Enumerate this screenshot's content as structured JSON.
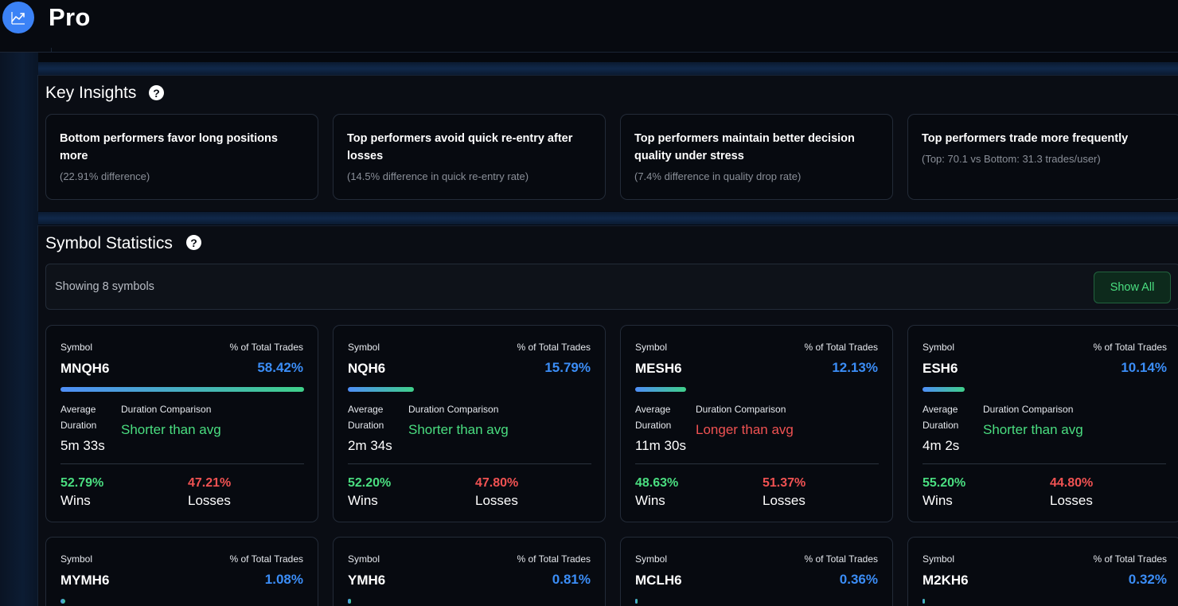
{
  "header": {
    "title": "Pro",
    "logo_icon": "chart-line-icon"
  },
  "insights_section": {
    "title": "Key Insights",
    "items": [
      {
        "title": "Bottom performers favor long positions more",
        "detail": "(22.91% difference)"
      },
      {
        "title": "Top performers avoid quick re-entry after losses",
        "detail": "(14.5% difference in quick re-entry rate)"
      },
      {
        "title": "Top performers maintain better decision quality under stress",
        "detail": "(7.4% difference in quality drop rate)"
      },
      {
        "title": "Top performers trade more frequently",
        "detail": "(Top: 70.1 vs Bottom: 31.3 trades/user)"
      }
    ]
  },
  "symbol_section": {
    "title": "Symbol Statistics",
    "showing_text": "Showing 8 symbols",
    "show_all_label": "Show All",
    "labels": {
      "symbol": "Symbol",
      "pct_total": "% of Total Trades",
      "avg_duration_line1": "Average",
      "avg_duration_line2": "Duration",
      "duration_comparison": "Duration Comparison",
      "wins": "Wins",
      "losses": "Losses"
    },
    "cards": [
      {
        "symbol": "MNQH6",
        "pct": "58.42%",
        "pct_value": 58.42,
        "avg_duration": "5m 33s",
        "comparison": "Shorter than avg",
        "comparison_kind": "shorter",
        "wins": "52.79%",
        "losses": "47.21%"
      },
      {
        "symbol": "NQH6",
        "pct": "15.79%",
        "pct_value": 15.79,
        "avg_duration": "2m 34s",
        "comparison": "Shorter than avg",
        "comparison_kind": "shorter",
        "wins": "52.20%",
        "losses": "47.80%"
      },
      {
        "symbol": "MESH6",
        "pct": "12.13%",
        "pct_value": 12.13,
        "avg_duration": "11m 30s",
        "comparison": "Longer than avg",
        "comparison_kind": "longer",
        "wins": "48.63%",
        "losses": "51.37%"
      },
      {
        "symbol": "ESH6",
        "pct": "10.14%",
        "pct_value": 10.14,
        "avg_duration": "4m 2s",
        "comparison": "Shorter than avg",
        "comparison_kind": "shorter",
        "wins": "55.20%",
        "losses": "44.80%"
      },
      {
        "symbol": "MYMH6",
        "pct": "1.08%",
        "pct_value": 1.08
      },
      {
        "symbol": "YMH6",
        "pct": "0.81%",
        "pct_value": 0.81
      },
      {
        "symbol": "MCLH6",
        "pct": "0.36%",
        "pct_value": 0.36
      },
      {
        "symbol": "M2KH6",
        "pct": "0.32%",
        "pct_value": 0.32
      }
    ]
  },
  "colors": {
    "accent_blue": "#3b8df6",
    "win_green": "#4ade80",
    "loss_red": "#f05252",
    "bar_gradient_start": "#4f8ef7",
    "bar_gradient_end": "#3fd08a"
  }
}
